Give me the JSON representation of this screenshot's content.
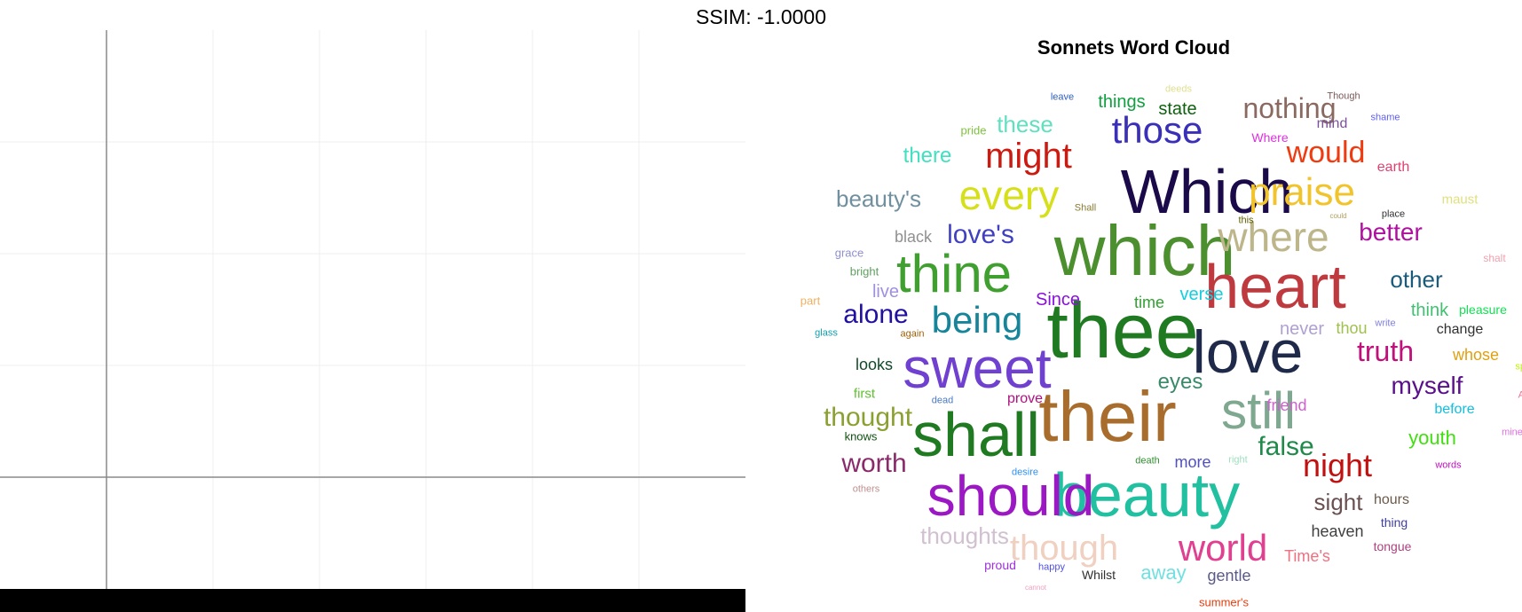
{
  "header": {
    "ssim_text": "SSIM: -1.0000"
  },
  "chart_data": [
    {
      "type": "line",
      "title": "",
      "xlabel": "",
      "ylabel": "",
      "series": [],
      "grid": true
    },
    {
      "type": "wordcloud",
      "title": "Sonnets Word Cloud",
      "words": [
        {
          "text": "Which",
          "color": "#1b0a4a"
        },
        {
          "text": "which",
          "color": "#4c8f2f"
        },
        {
          "text": "thee",
          "color": "#1f7a22"
        },
        {
          "text": "their",
          "color": "#a86d2c"
        },
        {
          "text": "heart",
          "color": "#bf3a3e"
        },
        {
          "text": "love",
          "color": "#1f2a4a"
        },
        {
          "text": "sweet",
          "color": "#7040d0"
        },
        {
          "text": "shall",
          "color": "#1f7a22"
        },
        {
          "text": "beauty",
          "color": "#20c0a0"
        },
        {
          "text": "should",
          "color": "#9b18c4"
        },
        {
          "text": "still",
          "color": "#7fa890"
        },
        {
          "text": "thine",
          "color": "#3fa02f"
        },
        {
          "text": "where",
          "color": "#bdb68a"
        },
        {
          "text": "praise",
          "color": "#f2c42c"
        },
        {
          "text": "every",
          "color": "#d6e01a"
        },
        {
          "text": "being",
          "color": "#16859a"
        },
        {
          "text": "those",
          "color": "#3a2fb8"
        },
        {
          "text": "might",
          "color": "#cc1a10"
        },
        {
          "text": "world",
          "color": "#e04090"
        },
        {
          "text": "though",
          "color": "#f0d0c0"
        },
        {
          "text": "nothing",
          "color": "#8a6a60"
        },
        {
          "text": "would",
          "color": "#f03a10"
        },
        {
          "text": "night",
          "color": "#c01010"
        },
        {
          "text": "better",
          "color": "#b010a0"
        },
        {
          "text": "false",
          "color": "#1f8a4a"
        },
        {
          "text": "alone",
          "color": "#2010a0"
        },
        {
          "text": "thought",
          "color": "#8aa030"
        },
        {
          "text": "worth",
          "color": "#8a2a6a"
        },
        {
          "text": "these",
          "color": "#60e0c0"
        },
        {
          "text": "love's",
          "color": "#4040c0"
        },
        {
          "text": "beauty's",
          "color": "#7090a0"
        },
        {
          "text": "thoughts",
          "color": "#d0c0d0"
        },
        {
          "text": "truth",
          "color": "#c0107a"
        },
        {
          "text": "myself",
          "color": "#5a108a"
        },
        {
          "text": "eyes",
          "color": "#3a8a6a"
        },
        {
          "text": "sight",
          "color": "#6a5050"
        },
        {
          "text": "other",
          "color": "#1a5a7a"
        },
        {
          "text": "there",
          "color": "#40e0c0"
        },
        {
          "text": "things",
          "color": "#10a040"
        },
        {
          "text": "state",
          "color": "#106010"
        },
        {
          "text": "verse",
          "color": "#10d0e0"
        },
        {
          "text": "Since",
          "color": "#8a10e0"
        },
        {
          "text": "youth",
          "color": "#40e010"
        },
        {
          "text": "heaven",
          "color": "#404040"
        },
        {
          "text": "away",
          "color": "#70e0e0"
        },
        {
          "text": "Time's",
          "color": "#f07080"
        },
        {
          "text": "never",
          "color": "#b0a0d0"
        },
        {
          "text": "time",
          "color": "#30a030"
        },
        {
          "text": "thou",
          "color": "#a0c050"
        },
        {
          "text": "black",
          "color": "#909090"
        },
        {
          "text": "live",
          "color": "#a090e0"
        },
        {
          "text": "looks",
          "color": "#104a2a"
        },
        {
          "text": "friend",
          "color": "#d060d0"
        },
        {
          "text": "more",
          "color": "#5050c0"
        },
        {
          "text": "gentle",
          "color": "#5a5a8a"
        },
        {
          "text": "think",
          "color": "#40c070"
        },
        {
          "text": "change",
          "color": "#303030"
        },
        {
          "text": "whose",
          "color": "#e0a010"
        },
        {
          "text": "before",
          "color": "#10c0e0"
        },
        {
          "text": "hours",
          "color": "#6a5a4a"
        },
        {
          "text": "earth",
          "color": "#e04070"
        },
        {
          "text": "mind",
          "color": "#7a509a"
        },
        {
          "text": "maust",
          "color": "#e0e080"
        },
        {
          "text": "prove",
          "color": "#b01080"
        },
        {
          "text": "first",
          "color": "#60c030"
        },
        {
          "text": "Whilst",
          "color": "#303030"
        },
        {
          "text": "proud",
          "color": "#a030e0"
        },
        {
          "text": "pleasure",
          "color": "#10e050"
        },
        {
          "text": "Where",
          "color": "#e030e0"
        },
        {
          "text": "knows",
          "color": "#105010"
        },
        {
          "text": "tongue",
          "color": "#b04080"
        },
        {
          "text": "thing",
          "color": "#4040a0"
        },
        {
          "text": "grace",
          "color": "#9090d0"
        },
        {
          "text": "bright",
          "color": "#60a060"
        },
        {
          "text": "pride",
          "color": "#80c040"
        },
        {
          "text": "part",
          "color": "#f0b060"
        },
        {
          "text": "glass",
          "color": "#10a0b0"
        },
        {
          "text": "desire",
          "color": "#3090f0"
        },
        {
          "text": "summer's",
          "color": "#e04010"
        },
        {
          "text": "shame",
          "color": "#6060f0"
        },
        {
          "text": "leave",
          "color": "#3060c0"
        },
        {
          "text": "Though",
          "color": "#7a5a5a"
        },
        {
          "text": "shalt",
          "color": "#f0a0b0"
        },
        {
          "text": "others",
          "color": "#c09090"
        },
        {
          "text": "deeds",
          "color": "#e0e090"
        },
        {
          "text": "Shall",
          "color": "#8a7a30"
        },
        {
          "text": "could",
          "color": "#b0a060"
        },
        {
          "text": "place",
          "color": "#303030"
        },
        {
          "text": "this",
          "color": "#606000"
        },
        {
          "text": "write",
          "color": "#8080e0"
        },
        {
          "text": "again",
          "color": "#a0600a"
        },
        {
          "text": "dead",
          "color": "#4a7ac0"
        },
        {
          "text": "death",
          "color": "#309030"
        },
        {
          "text": "right",
          "color": "#a0e0c0"
        },
        {
          "text": "happy",
          "color": "#5050e0"
        },
        {
          "text": "cannot",
          "color": "#f0a0c0"
        },
        {
          "text": "words",
          "color": "#c010c0"
        },
        {
          "text": "mine",
          "color": "#e070e0"
        },
        {
          "text": "spirit",
          "color": "#c0f010"
        },
        {
          "text": "Against",
          "color": "#f07090"
        }
      ]
    }
  ]
}
